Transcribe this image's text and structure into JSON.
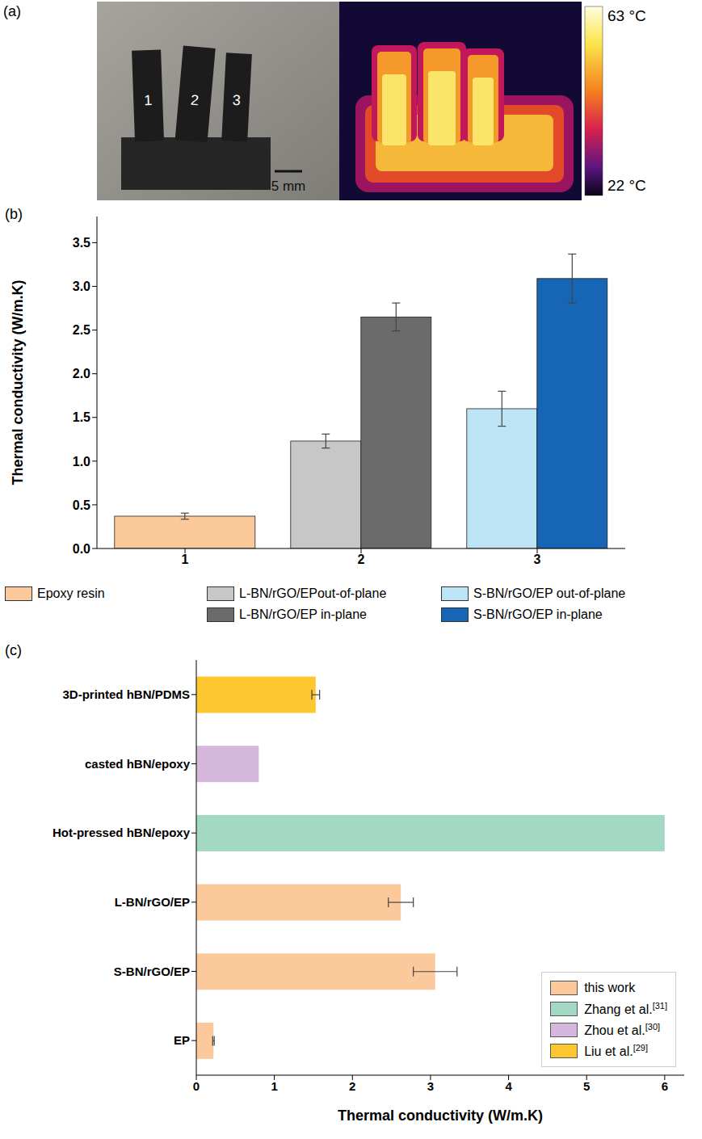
{
  "panel_a": {
    "label": "(a)",
    "samples": [
      "1",
      "2",
      "3"
    ],
    "scale_bar": "5 mm",
    "colorbar": {
      "range": [
        22,
        63
      ],
      "ticks": [
        {
          "value": 63,
          "label": "63 °C"
        },
        {
          "value": 22,
          "label": "22 °C"
        }
      ]
    }
  },
  "chart_data": [
    {
      "type": "bar",
      "label": "(b)",
      "categories": [
        "1",
        "2",
        "3"
      ],
      "y_label": "Thermal conductivity (W/m.K)",
      "ylim": [
        0,
        3.8
      ],
      "yticks": [
        {
          "value": 0,
          "label": "0.0"
        },
        0.5,
        {
          "value": 1,
          "label": "1.0"
        },
        1.5,
        {
          "value": 2,
          "label": "2.0"
        },
        2.5,
        {
          "value": 3,
          "label": "3.0"
        },
        3.5
      ],
      "legend": "bottom",
      "series": [
        {
          "name": "Epoxy resin",
          "color": "#fbc99b",
          "values": [
            0.37,
            null,
            null
          ],
          "errors": [
            0.035,
            null,
            null
          ]
        },
        {
          "name": "L-BN/rGO/EPout-of-plane",
          "color": "#c7c7c7",
          "values": [
            null,
            1.23,
            null
          ],
          "errors": [
            null,
            0.08,
            null
          ]
        },
        {
          "name": "L-BN/rGO/EP in-plane",
          "color": "#6b6b6b",
          "values": [
            null,
            2.65,
            null
          ],
          "errors": [
            null,
            0.16,
            null
          ]
        },
        {
          "name": "S-BN/rGO/EP out-of-plane",
          "color": "#bde4f4",
          "values": [
            null,
            null,
            1.6
          ],
          "errors": [
            null,
            null,
            0.2
          ]
        },
        {
          "name": "S-BN/rGO/EP in-plane",
          "color": "#1766b5",
          "values": [
            null,
            null,
            3.09
          ],
          "errors": [
            null,
            null,
            0.28
          ]
        }
      ]
    },
    {
      "type": "bar",
      "orientation": "horizontal",
      "label": "(c)",
      "categories": [
        "3D-printed hBN/PDMS",
        "casted hBN/epoxy",
        "Hot-pressed hBN/epoxy",
        "L-BN/rGO/EP",
        "S-BN/rGO/EP",
        "EP"
      ],
      "x_label": "Thermal conductivity (W/m.K)",
      "xlim": [
        0,
        6.25
      ],
      "xticks": [
        0,
        1,
        2,
        3,
        4,
        5,
        6
      ],
      "legend": "bottom-right",
      "series": [
        {
          "name": "this work",
          "color": "#fbc99b",
          "values": [
            null,
            null,
            null,
            2.62,
            3.06,
            0.22
          ],
          "errors": [
            null,
            null,
            null,
            0.16,
            0.28,
            0.01
          ]
        },
        {
          "name": "Zhang et al.[31]",
          "color": "#a3d9c3",
          "values": [
            null,
            null,
            6.0,
            null,
            null,
            null
          ]
        },
        {
          "name": "Zhou et al.[30]",
          "color": "#d5b8dc",
          "values": [
            null,
            0.8,
            null,
            null,
            null,
            null
          ]
        },
        {
          "name": "Liu et al.[29]",
          "color": "#fdc82f",
          "values": [
            1.53,
            null,
            null,
            null,
            null,
            null
          ],
          "errors": [
            0.05,
            null,
            null,
            null,
            null,
            null
          ]
        }
      ]
    }
  ]
}
